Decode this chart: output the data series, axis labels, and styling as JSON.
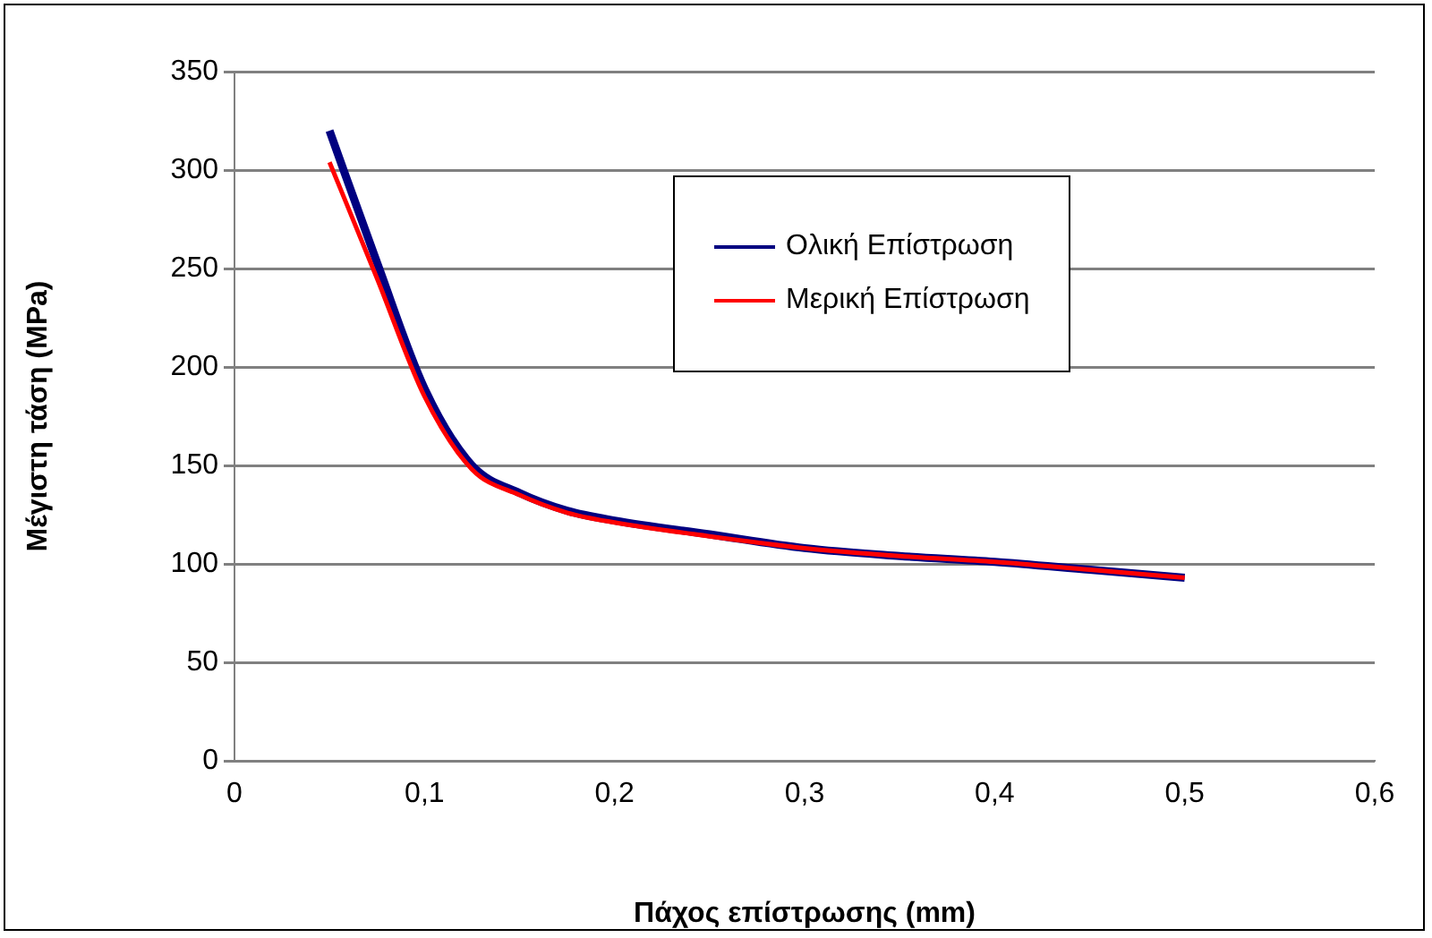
{
  "chart_data": {
    "type": "line",
    "xlabel": "Πάχος επίστρωσης (mm)",
    "ylabel": "Μέγιστη τάση (MPa)",
    "x": [
      0.05,
      0.075,
      0.1,
      0.125,
      0.15,
      0.175,
      0.2,
      0.25,
      0.3,
      0.35,
      0.4,
      0.45,
      0.5
    ],
    "series": [
      {
        "name": "Ολική Επίστρωση",
        "color": "#000080",
        "values": [
          320,
          253,
          189,
          150,
          136,
          127,
          122,
          115,
          108,
          104,
          101,
          97,
          93
        ]
      },
      {
        "name": "Μερική Επίστρωση",
        "color": "#ff0000",
        "values": [
          304,
          245,
          185,
          148,
          135,
          126,
          121,
          114,
          108,
          104,
          101,
          97,
          93
        ]
      }
    ],
    "xlim": [
      0,
      0.6
    ],
    "xticks": [
      {
        "value": 0,
        "label": "0"
      },
      {
        "value": 0.1,
        "label": "0,1"
      },
      {
        "value": 0.2,
        "label": "0,2"
      },
      {
        "value": 0.3,
        "label": "0,3"
      },
      {
        "value": 0.4,
        "label": "0,4"
      },
      {
        "value": 0.5,
        "label": "0,5"
      },
      {
        "value": 0.6,
        "label": "0,6"
      }
    ],
    "ylim": [
      0,
      350
    ],
    "yticks": [
      0,
      50,
      100,
      150,
      200,
      250,
      300,
      350
    ],
    "grid": "y",
    "legend": "top right",
    "marker": "none",
    "line_style": "solid"
  }
}
